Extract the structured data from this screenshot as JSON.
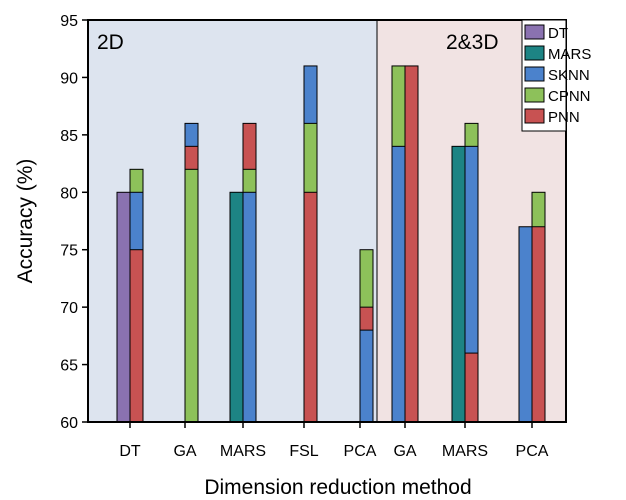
{
  "chart_data": {
    "type": "bar",
    "title": "",
    "xlabel": "Dimension reduction method",
    "ylabel": "Accuracy (%)",
    "ylim": [
      60,
      95
    ],
    "yticks": [
      60,
      65,
      70,
      75,
      80,
      85,
      90,
      95
    ],
    "grid": false,
    "legend_position": "top-right",
    "regions": [
      {
        "label": "2D",
        "categories": [
          "DT",
          "GA",
          "MARS",
          "FSL",
          "PCA"
        ],
        "color": "#dde4ef"
      },
      {
        "label": "2&3D",
        "categories": [
          "GA",
          "MARS",
          "PCA"
        ],
        "color": "#f1e3e3"
      }
    ],
    "categories": [
      "DT",
      "GA",
      "MARS",
      "FSL",
      "PCA",
      "GA",
      "MARS",
      "PCA"
    ],
    "series": [
      {
        "name": "DT",
        "color": "#8a72b0"
      },
      {
        "name": "MARS",
        "color": "#1d8484"
      },
      {
        "name": "SKNN",
        "color": "#4b82cc"
      },
      {
        "name": "CPNN",
        "color": "#8dc15a"
      },
      {
        "name": "PNN",
        "color": "#c85252"
      }
    ],
    "bars": [
      {
        "category_index": 0,
        "position": "left",
        "segments": [
          {
            "series": "DT",
            "value": 80
          }
        ]
      },
      {
        "category_index": 0,
        "position": "right",
        "segments": [
          {
            "series": "PNN",
            "value": 75
          },
          {
            "series": "SKNN",
            "value": 80
          },
          {
            "series": "CPNN",
            "value": 82
          }
        ]
      },
      {
        "category_index": 1,
        "position": "right",
        "segments": [
          {
            "series": "CPNN",
            "value": 82
          },
          {
            "series": "PNN",
            "value": 84
          },
          {
            "series": "SKNN",
            "value": 86
          }
        ]
      },
      {
        "category_index": 2,
        "position": "left",
        "segments": [
          {
            "series": "MARS",
            "value": 80
          }
        ]
      },
      {
        "category_index": 2,
        "position": "right",
        "segments": [
          {
            "series": "SKNN",
            "value": 80
          },
          {
            "series": "CPNN",
            "value": 82
          },
          {
            "series": "PNN",
            "value": 86
          }
        ]
      },
      {
        "category_index": 3,
        "position": "right",
        "segments": [
          {
            "series": "PNN",
            "value": 80
          },
          {
            "series": "CPNN",
            "value": 86
          },
          {
            "series": "SKNN",
            "value": 91
          }
        ]
      },
      {
        "category_index": 4,
        "position": "right",
        "segments": [
          {
            "series": "SKNN",
            "value": 68
          },
          {
            "series": "PNN",
            "value": 70
          },
          {
            "series": "CPNN",
            "value": 75
          }
        ]
      },
      {
        "category_index": 5,
        "position": "left",
        "segments": [
          {
            "series": "SKNN",
            "value": 84
          },
          {
            "series": "CPNN",
            "value": 91
          }
        ]
      },
      {
        "category_index": 5,
        "position": "right",
        "segments": [
          {
            "series": "PNN",
            "value": 91
          }
        ]
      },
      {
        "category_index": 6,
        "position": "left",
        "segments": [
          {
            "series": "MARS",
            "value": 84
          }
        ]
      },
      {
        "category_index": 6,
        "position": "right",
        "segments": [
          {
            "series": "PNN",
            "value": 66
          },
          {
            "series": "SKNN",
            "value": 84
          },
          {
            "series": "CPNN",
            "value": 86
          }
        ]
      },
      {
        "category_index": 7,
        "position": "left",
        "segments": [
          {
            "series": "SKNN",
            "value": 77
          }
        ]
      },
      {
        "category_index": 7,
        "position": "right",
        "segments": [
          {
            "series": "PNN",
            "value": 77
          },
          {
            "series": "CPNN",
            "value": 80
          }
        ]
      }
    ]
  }
}
